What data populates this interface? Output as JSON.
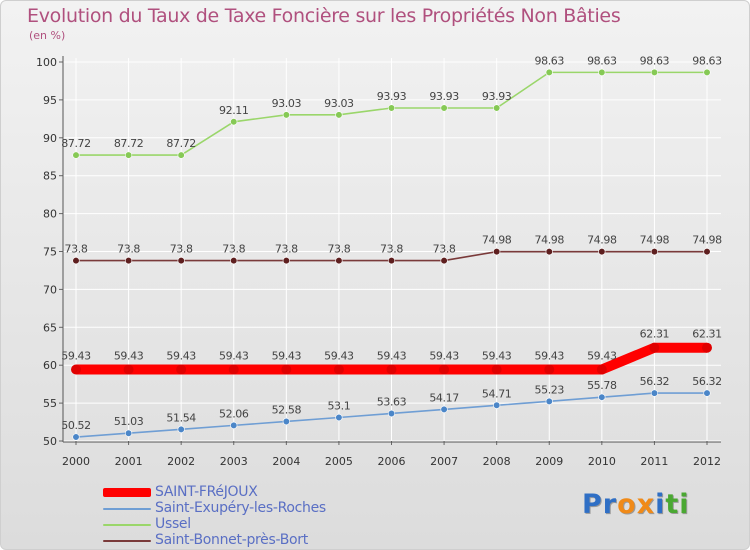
{
  "title": "Evolution du Taux de Taxe Foncière sur les Propriétés Non Bâties",
  "unit": "(en %)",
  "brand": {
    "letters": [
      "P",
      "r",
      "o",
      "x",
      "i",
      "t",
      "i"
    ],
    "colors": [
      "#2f6fc5",
      "#2f6fc5",
      "#f08a18",
      "#f08a18",
      "#2f6fc5",
      "#4aa832",
      "#4aa832"
    ]
  },
  "chart_data": {
    "type": "line",
    "title": "Evolution du Taux de Taxe Foncière sur les Propriétés Non Bâties",
    "ylabel": "(en %)",
    "xlabel": "",
    "ylim": [
      50,
      100
    ],
    "yticks": [
      "50",
      "55",
      "60",
      "65",
      "70",
      "75",
      "80",
      "85",
      "90",
      "95",
      "100"
    ],
    "categories": [
      "2000",
      "2001",
      "2002",
      "2003",
      "2004",
      "2005",
      "2006",
      "2007",
      "2008",
      "2009",
      "2010",
      "2011",
      "2012"
    ],
    "series": [
      {
        "name": "SAINT-FRéJOUX",
        "color": "#ff0000",
        "marker": "#e00000",
        "bold": true,
        "values": [
          59.43,
          59.43,
          59.43,
          59.43,
          59.43,
          59.43,
          59.43,
          59.43,
          59.43,
          59.43,
          59.43,
          62.31,
          62.31
        ],
        "labels": [
          "59.43",
          "59.43",
          "59.43",
          "59.43",
          "59.43",
          "59.43",
          "59.43",
          "59.43",
          "59.43",
          "59.43",
          "59.43",
          "62.31",
          "62.31"
        ]
      },
      {
        "name": "Saint-Exupéry-les-Roches",
        "color": "#6f9ed4",
        "marker": "#4b86c8",
        "bold": false,
        "values": [
          50.52,
          51.03,
          51.54,
          52.06,
          52.58,
          53.1,
          53.63,
          54.17,
          54.71,
          55.23,
          55.78,
          56.32,
          56.32
        ],
        "labels": [
          "50.52",
          "51.03",
          "51.54",
          "52.06",
          "52.58",
          "53.1",
          "53.63",
          "54.17",
          "54.71",
          "55.23",
          "55.78",
          "56.32",
          "56.32"
        ]
      },
      {
        "name": "Ussel",
        "color": "#9ad66a",
        "marker": "#86c955",
        "bold": false,
        "values": [
          87.72,
          87.72,
          87.72,
          92.11,
          93.03,
          93.03,
          93.93,
          93.93,
          93.93,
          98.63,
          98.63,
          98.63,
          98.63
        ],
        "labels": [
          "87.72",
          "87.72",
          "87.72",
          "92.11",
          "93.03",
          "93.03",
          "93.93",
          "93.93",
          "93.93",
          "98.63",
          "98.63",
          "98.63",
          "98.63"
        ]
      },
      {
        "name": "Saint-Bonnet-près-Bort",
        "color": "#7a3a3a",
        "marker": "#5e1f1f",
        "bold": false,
        "values": [
          73.8,
          73.8,
          73.8,
          73.8,
          73.8,
          73.8,
          73.8,
          73.8,
          74.98,
          74.98,
          74.98,
          74.98,
          74.98
        ],
        "labels": [
          "73.8",
          "73.8",
          "73.8",
          "73.8",
          "73.8",
          "73.8",
          "73.8",
          "73.8",
          "74.98",
          "74.98",
          "74.98",
          "74.98",
          "74.98"
        ]
      }
    ],
    "grid": true,
    "legend": "bottom-left"
  }
}
